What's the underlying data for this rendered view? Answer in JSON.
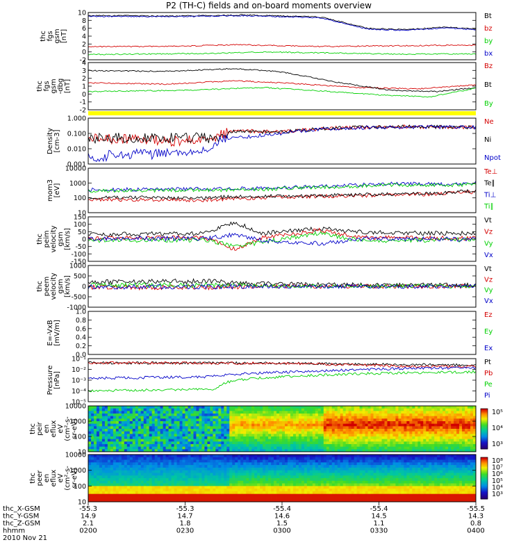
{
  "title": "P2 (TH-C) fields and on-board moments overview",
  "colors": {
    "black": "#000000",
    "red": "#d40000",
    "green": "#00d000",
    "blue": "#0000c8",
    "yellow": "#ffff00"
  },
  "chart_data": [
    {
      "id": "fgs",
      "type": "line",
      "ylabel": [
        "thc",
        "fgs",
        "gsm",
        "[nT]"
      ],
      "yticks": [
        "10",
        "8",
        "6",
        "4",
        "2",
        "0",
        "-2"
      ],
      "ylim": [
        -3,
        10.5
      ],
      "series": [
        {
          "name": "Bt",
          "color": "black",
          "knots": [
            [
              0,
              9.6
            ],
            [
              0.22,
              9.5
            ],
            [
              0.4,
              9.8
            ],
            [
              0.6,
              9.2
            ],
            [
              0.72,
              6.0
            ],
            [
              0.82,
              5.6
            ],
            [
              0.92,
              6.3
            ],
            [
              1.0,
              5.8
            ]
          ]
        },
        {
          "name": "bz",
          "color": "red",
          "knots": [
            [
              0,
              0.7
            ],
            [
              0.25,
              0.9
            ],
            [
              0.38,
              1.3
            ],
            [
              0.6,
              0.8
            ],
            [
              0.8,
              1.0
            ],
            [
              1.0,
              1.2
            ]
          ]
        },
        {
          "name": "by",
          "color": "green",
          "knots": [
            [
              0,
              -1.5
            ],
            [
              0.3,
              -1.2
            ],
            [
              0.45,
              -0.8
            ],
            [
              0.6,
              -1.0
            ],
            [
              0.8,
              -1.4
            ],
            [
              1.0,
              -1.3
            ]
          ]
        },
        {
          "name": "bx",
          "color": "blue",
          "knots": [
            [
              0,
              9.4
            ],
            [
              0.22,
              9.3
            ],
            [
              0.4,
              9.6
            ],
            [
              0.6,
              9.0
            ],
            [
              0.72,
              5.8
            ],
            [
              0.82,
              5.4
            ],
            [
              0.92,
              6.1
            ],
            [
              1.0,
              5.6
            ]
          ]
        }
      ]
    },
    {
      "id": "fgs_dbg",
      "type": "line",
      "ylabel": [
        "thc",
        "fgs",
        "gsm",
        "-dbg",
        "[nT]"
      ],
      "yticks": [
        "4",
        "3",
        "2",
        "1",
        "0",
        "-1",
        "-2"
      ],
      "ylim": [
        -2.5,
        4.5
      ],
      "series": [
        {
          "name": "Bz",
          "color": "red",
          "knots": [
            [
              0,
              1.5
            ],
            [
              0.2,
              1.3
            ],
            [
              0.38,
              1.8
            ],
            [
              0.5,
              1.5
            ],
            [
              0.7,
              0.8
            ],
            [
              0.85,
              0.6
            ],
            [
              1.0,
              1.2
            ]
          ]
        },
        {
          "name": "Bt",
          "color": "black",
          "knots": [
            [
              0,
              3.3
            ],
            [
              0.2,
              3.2
            ],
            [
              0.38,
              3.6
            ],
            [
              0.5,
              3.1
            ],
            [
              0.65,
              1.5
            ],
            [
              0.78,
              0.4
            ],
            [
              0.9,
              0.2
            ],
            [
              1.0,
              0.8
            ]
          ]
        },
        {
          "name": "By",
          "color": "green",
          "knots": [
            [
              0,
              0.2
            ],
            [
              0.25,
              0.4
            ],
            [
              0.45,
              0.8
            ],
            [
              0.6,
              0.3
            ],
            [
              0.75,
              -0.3
            ],
            [
              0.88,
              -0.6
            ],
            [
              1.0,
              0.7
            ]
          ]
        }
      ]
    },
    {
      "id": "density",
      "type": "line",
      "ylabel": [
        "Density",
        "[cm-3]"
      ],
      "yticks": [
        "1.000",
        "0.100",
        "0.010",
        "0.001"
      ],
      "ylim": [
        0.001,
        1.0
      ],
      "yscale": "log",
      "series": [
        {
          "name": "Ne",
          "color": "red",
          "knots": [
            [
              0,
              0.05
            ],
            [
              0.2,
              0.03
            ],
            [
              0.33,
              0.05
            ],
            [
              0.38,
              0.15
            ],
            [
              0.5,
              0.12
            ],
            [
              0.62,
              0.22
            ],
            [
              0.8,
              0.28
            ],
            [
              1.0,
              0.25
            ]
          ]
        },
        {
          "name": "Ni",
          "color": "black",
          "knots": [
            [
              0,
              0.05
            ],
            [
              0.33,
              0.05
            ],
            [
              0.38,
              0.14
            ],
            [
              0.5,
              0.12
            ],
            [
              0.62,
              0.22
            ],
            [
              0.8,
              0.28
            ],
            [
              1.0,
              0.26
            ]
          ]
        },
        {
          "name": "Npot",
          "color": "blue",
          "knots": [
            [
              0,
              0.003
            ],
            [
              0.3,
              0.006
            ],
            [
              0.36,
              0.04
            ],
            [
              0.5,
              0.1
            ],
            [
              0.62,
              0.2
            ],
            [
              0.8,
              0.26
            ],
            [
              1.0,
              0.25
            ]
          ]
        }
      ]
    },
    {
      "id": "temperature",
      "type": "line",
      "ylabel": [
        "mom3",
        "[eV]"
      ],
      "yticks": [
        "10000",
        "1000",
        "100",
        "10"
      ],
      "ylim": [
        10,
        10000
      ],
      "yscale": "log",
      "series": [
        {
          "name": "Te⊥",
          "color": "red",
          "knots": [
            [
              0,
              80
            ],
            [
              0.3,
              70
            ],
            [
              0.38,
              90
            ],
            [
              0.55,
              120
            ],
            [
              0.75,
              150
            ],
            [
              0.9,
              180
            ],
            [
              1.0,
              250
            ]
          ]
        },
        {
          "name": "Te∥",
          "color": "black",
          "knots": [
            [
              0,
              110
            ],
            [
              0.3,
              100
            ],
            [
              0.38,
              120
            ],
            [
              0.55,
              140
            ],
            [
              0.75,
              170
            ],
            [
              0.9,
              200
            ],
            [
              1.0,
              300
            ]
          ]
        },
        {
          "name": "Ti⊥",
          "color": "blue",
          "knots": [
            [
              0,
              350
            ],
            [
              0.3,
              400
            ],
            [
              0.45,
              450
            ],
            [
              0.6,
              600
            ],
            [
              0.8,
              900
            ],
            [
              0.95,
              800
            ],
            [
              1.0,
              1100
            ]
          ]
        },
        {
          "name": "Ti∥",
          "color": "green",
          "knots": [
            [
              0,
              300
            ],
            [
              0.3,
              330
            ],
            [
              0.45,
              380
            ],
            [
              0.6,
              500
            ],
            [
              0.8,
              750
            ],
            [
              0.95,
              700
            ],
            [
              1.0,
              900
            ]
          ]
        }
      ]
    },
    {
      "id": "peim_velocity",
      "type": "line",
      "ylabel": [
        "thc",
        "peim",
        "velocity",
        "gsm",
        "[km/s]"
      ],
      "yticks": [
        "150",
        "100",
        "50",
        "0",
        "-50",
        "-100",
        "-150"
      ],
      "ylim": [
        -150,
        150
      ],
      "series": [
        {
          "name": "Vt",
          "color": "black",
          "knots": [
            [
              0,
              30
            ],
            [
              0.3,
              40
            ],
            [
              0.38,
              110
            ],
            [
              0.45,
              40
            ],
            [
              0.6,
              70
            ],
            [
              0.7,
              50
            ],
            [
              0.85,
              40
            ],
            [
              1.0,
              40
            ]
          ]
        },
        {
          "name": "Vz",
          "color": "red",
          "knots": [
            [
              0,
              5
            ],
            [
              0.3,
              10
            ],
            [
              0.38,
              -70
            ],
            [
              0.45,
              10
            ],
            [
              0.6,
              60
            ],
            [
              0.7,
              10
            ],
            [
              1.0,
              5
            ]
          ]
        },
        {
          "name": "Vy",
          "color": "green",
          "knots": [
            [
              0,
              -10
            ],
            [
              0.3,
              -5
            ],
            [
              0.38,
              -50
            ],
            [
              0.45,
              -20
            ],
            [
              0.6,
              40
            ],
            [
              0.7,
              -10
            ],
            [
              1.0,
              -5
            ]
          ]
        },
        {
          "name": "Vx",
          "color": "blue",
          "knots": [
            [
              0,
              0
            ],
            [
              0.3,
              5
            ],
            [
              0.38,
              30
            ],
            [
              0.45,
              -10
            ],
            [
              0.6,
              -30
            ],
            [
              0.7,
              0
            ],
            [
              1.0,
              0
            ]
          ]
        }
      ]
    },
    {
      "id": "peem_velocity",
      "type": "line",
      "ylabel": [
        "thc",
        "peem",
        "velocity",
        "gsm",
        "[km/s]"
      ],
      "yticks": [
        "1000",
        "500",
        "0",
        "-500",
        "-1000"
      ],
      "ylim": [
        -1000,
        1000
      ],
      "series": [
        {
          "name": "Vt",
          "color": "black",
          "knots": [
            [
              0,
              200
            ],
            [
              0.3,
              250
            ],
            [
              0.4,
              150
            ],
            [
              0.6,
              80
            ],
            [
              0.8,
              60
            ],
            [
              1.0,
              60
            ]
          ]
        },
        {
          "name": "Vz",
          "color": "red",
          "knots": [
            [
              0,
              -50
            ],
            [
              0.3,
              -40
            ],
            [
              0.5,
              0
            ],
            [
              1.0,
              0
            ]
          ]
        },
        {
          "name": "Vy",
          "color": "green",
          "knots": [
            [
              0,
              50
            ],
            [
              0.3,
              60
            ],
            [
              0.5,
              10
            ],
            [
              1.0,
              0
            ]
          ]
        },
        {
          "name": "Vx",
          "color": "blue",
          "knots": [
            [
              0,
              -20
            ],
            [
              0.4,
              -10
            ],
            [
              1.0,
              0
            ]
          ]
        }
      ]
    },
    {
      "id": "efield",
      "type": "line",
      "ylabel": [
        "E=-VxB",
        "[mV/m]"
      ],
      "yticks": [
        "1.0",
        "0.8",
        "0.6",
        "0.4",
        "0.2",
        "0.0"
      ],
      "ylim": [
        0,
        1.0
      ],
      "series": [
        {
          "name": "Ez",
          "color": "red",
          "knots": []
        },
        {
          "name": "Ey",
          "color": "green",
          "knots": []
        },
        {
          "name": "Ex",
          "color": "blue",
          "knots": []
        }
      ]
    },
    {
      "id": "pressure",
      "type": "line",
      "ylabel": [
        "Pressure",
        "[nPa]"
      ],
      "yticks": [
        "10⁻¹",
        "10⁻²",
        "10⁻³",
        "10⁻⁴",
        "10⁻⁵"
      ],
      "ylim": [
        1e-05,
        0.1
      ],
      "yscale": "log",
      "series": [
        {
          "name": "Pt",
          "color": "black",
          "knots": [
            [
              0,
              0.04
            ],
            [
              0.5,
              0.038
            ],
            [
              0.7,
              0.03
            ],
            [
              1.0,
              0.025
            ]
          ]
        },
        {
          "name": "Pb",
          "color": "red",
          "knots": [
            [
              0,
              0.04
            ],
            [
              0.5,
              0.037
            ],
            [
              0.65,
              0.028
            ],
            [
              0.85,
              0.018
            ],
            [
              1.0,
              0.02
            ]
          ]
        },
        {
          "name": "Pe",
          "color": "green",
          "knots": [
            [
              0,
              0.0001
            ],
            [
              0.33,
              0.00015
            ],
            [
              0.38,
              0.001
            ],
            [
              0.5,
              0.002
            ],
            [
              0.7,
              0.004
            ],
            [
              1.0,
              0.006
            ]
          ]
        },
        {
          "name": "Pi",
          "color": "blue",
          "knots": [
            [
              0,
              0.0015
            ],
            [
              0.3,
              0.002
            ],
            [
              0.4,
              0.004
            ],
            [
              0.6,
              0.007
            ],
            [
              0.8,
              0.012
            ],
            [
              1.0,
              0.014
            ]
          ]
        }
      ]
    },
    {
      "id": "peir_spectrogram",
      "type": "heatmap",
      "ylabel": [
        "thc",
        "peir",
        "en",
        "eflux",
        "eV",
        "(cm²-s-",
        "sr-eV)"
      ],
      "yticks": [
        "10000",
        "1000",
        "100",
        "10"
      ],
      "colorbar": [
        "10⁵",
        "10⁴",
        "10³"
      ]
    },
    {
      "id": "peer_spectrogram",
      "type": "heatmap",
      "ylabel": [
        "thc",
        "peer",
        "en",
        "eflux",
        "eV",
        "(cm²-s-",
        "sr-eV)"
      ],
      "yticks": [
        "10000",
        "1000",
        "100",
        "10"
      ],
      "colorbar": [
        "10⁸",
        "10⁷",
        "10⁶",
        "10⁵",
        "10⁴",
        "10³"
      ]
    }
  ],
  "xaxis": {
    "rows": [
      {
        "label": "thc_X-GSM",
        "values": [
          "-55.3",
          "-55.3",
          "-55.4",
          "-55.4",
          "-55.5"
        ]
      },
      {
        "label": "thc_Y-GSM",
        "values": [
          "14.9",
          "14.7",
          "14.6",
          "14.5",
          "14.3"
        ]
      },
      {
        "label": "thc_Z-GSM",
        "values": [
          "2.1",
          "1.8",
          "1.5",
          "1.1",
          "0.8"
        ]
      },
      {
        "label": "hhmm",
        "values": [
          "0200",
          "0230",
          "0300",
          "0330",
          "0400"
        ]
      }
    ],
    "date": "2010 Nov 21"
  }
}
